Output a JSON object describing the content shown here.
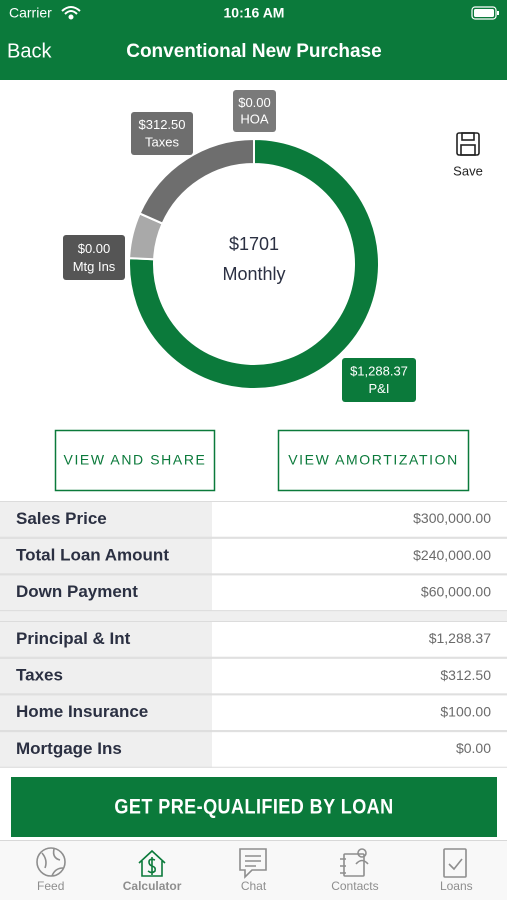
{
  "status_bar": {
    "carrier": "Carrier",
    "time": "10:16 AM"
  },
  "nav": {
    "back": "Back",
    "title": "Conventional New Purchase"
  },
  "donut": {
    "center_value": "$1701",
    "center_label": "Monthly",
    "segments": [
      {
        "label": "P&I",
        "value": 1288.37,
        "value_label": "$1,288.37",
        "color": "#0b7a3b"
      },
      {
        "value": 100,
        "color": "#a9a9a9"
      },
      {
        "label": "Mtg Ins",
        "value": 0,
        "value_label": "$0.00",
        "color": "#555555"
      },
      {
        "label": "Taxes",
        "value": 312.5,
        "value_label": "$312.50",
        "color": "#6e6e6e"
      },
      {
        "label": "HOA",
        "value": 0,
        "value_label": "$0.00",
        "color": "#7a7a7a"
      }
    ]
  },
  "save": "Save",
  "buttons": [
    "VIEW AND SHARE",
    "VIEW AMORTIZATION"
  ],
  "table": {
    "groups": [
      {
        "rows": [
          {
            "label": "Sales Price",
            "value": "$300,000.00"
          },
          {
            "label": "Total Loan Amount",
            "value": "$240,000.00"
          },
          {
            "label": "Down Payment",
            "value": "$60,000.00"
          }
        ]
      },
      {
        "rows": [
          {
            "label": "Principal & Int",
            "value": "$1,288.37"
          },
          {
            "label": "Taxes",
            "value": "$312.50"
          },
          {
            "label": "Home Insurance",
            "value": "$100.00"
          },
          {
            "label": "Mortgage Ins",
            "value": "$0.00"
          }
        ]
      }
    ]
  },
  "cta": "GET PRE-QUALIFIED BY LOAN",
  "tabs": [
    {
      "label": "Feed"
    },
    {
      "label": "Calculator",
      "active": true
    },
    {
      "label": "Chat"
    },
    {
      "label": "Contacts"
    },
    {
      "label": "Loans"
    }
  ]
}
